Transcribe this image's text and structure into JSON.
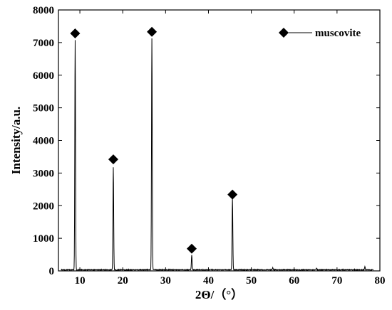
{
  "chart_data": {
    "type": "line",
    "xlabel": "2Θ/（°）",
    "ylabel": "Intensity/a.u.",
    "xlim": [
      5,
      80
    ],
    "ylim": [
      0,
      8000
    ],
    "x_ticks": [
      10,
      20,
      30,
      40,
      50,
      60,
      70,
      80
    ],
    "y_ticks": [
      0,
      1000,
      2000,
      3000,
      4000,
      5000,
      6000,
      7000,
      8000
    ],
    "grid": false,
    "legend": {
      "position": "top-right",
      "label": "muscovite",
      "marker": "diamond"
    },
    "series": [
      {
        "name": "muscovite",
        "peaks": [
          {
            "x": 8.9,
            "y": 7050
          },
          {
            "x": 17.8,
            "y": 3150
          },
          {
            "x": 26.8,
            "y": 7100
          },
          {
            "x": 36.1,
            "y": 450
          },
          {
            "x": 45.6,
            "y": 2200
          },
          {
            "x": 55.0,
            "y": 60
          },
          {
            "x": 65.2,
            "y": 50
          },
          {
            "x": 76.5,
            "y": 90
          }
        ],
        "baseline": 20
      }
    ],
    "markers": [
      {
        "x": 8.9,
        "y": 7280
      },
      {
        "x": 17.8,
        "y": 3420
      },
      {
        "x": 26.8,
        "y": 7330
      },
      {
        "x": 36.1,
        "y": 680
      },
      {
        "x": 45.6,
        "y": 2340
      }
    ]
  }
}
